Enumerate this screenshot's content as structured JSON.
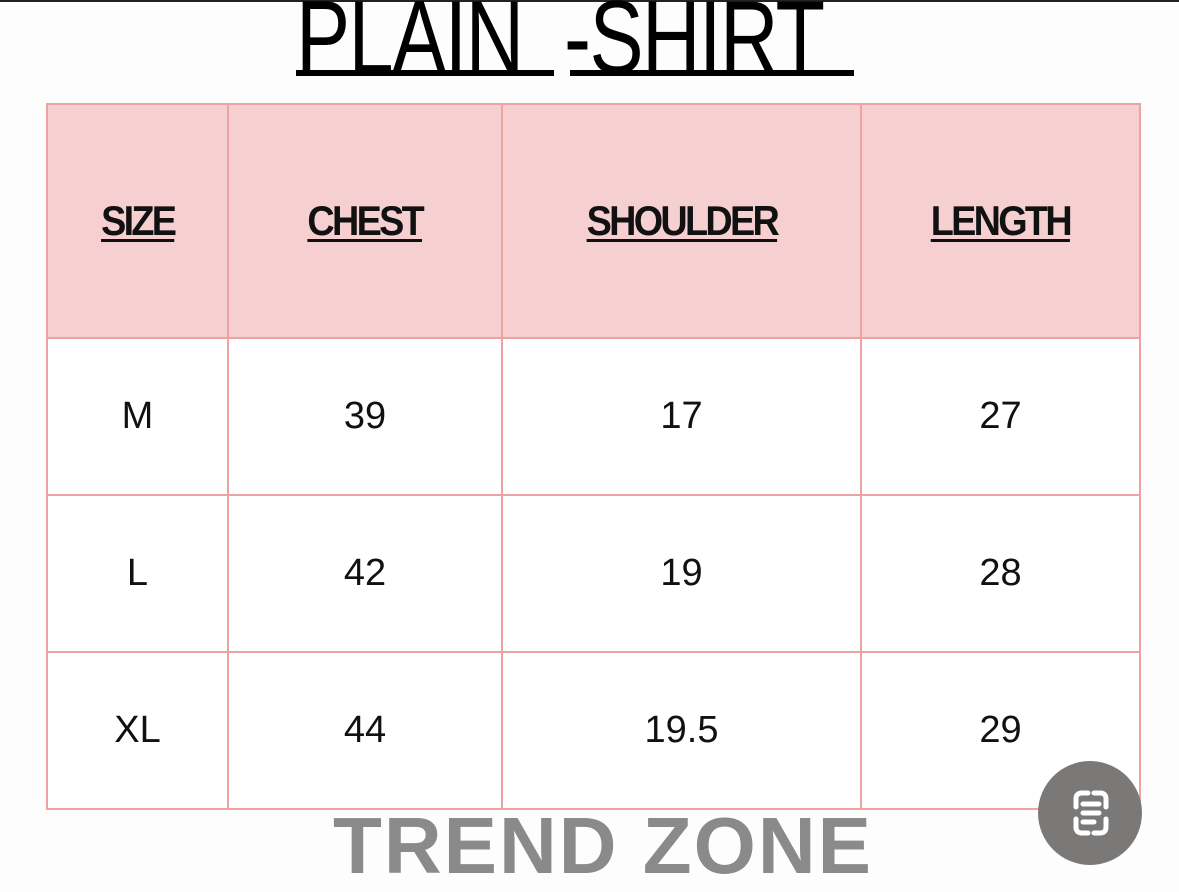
{
  "title": {
    "part1": "PLAIN",
    "part2": "-SHIRT"
  },
  "table": {
    "headers": [
      "SIZE",
      "CHEST",
      "SHOULDER",
      "LENGTH"
    ],
    "rows": [
      [
        "M",
        "39",
        "17",
        "27"
      ],
      [
        "L",
        "42",
        "19",
        "28"
      ],
      [
        "XL",
        "44",
        "19.5",
        "29"
      ]
    ]
  },
  "brand": "TREND ZONE",
  "colors": {
    "header_bg": "#f6cfd1",
    "border": "#eea2a2",
    "brand_text": "#8a8a8a"
  },
  "scan_button": {
    "icon": "text-scan-icon"
  }
}
